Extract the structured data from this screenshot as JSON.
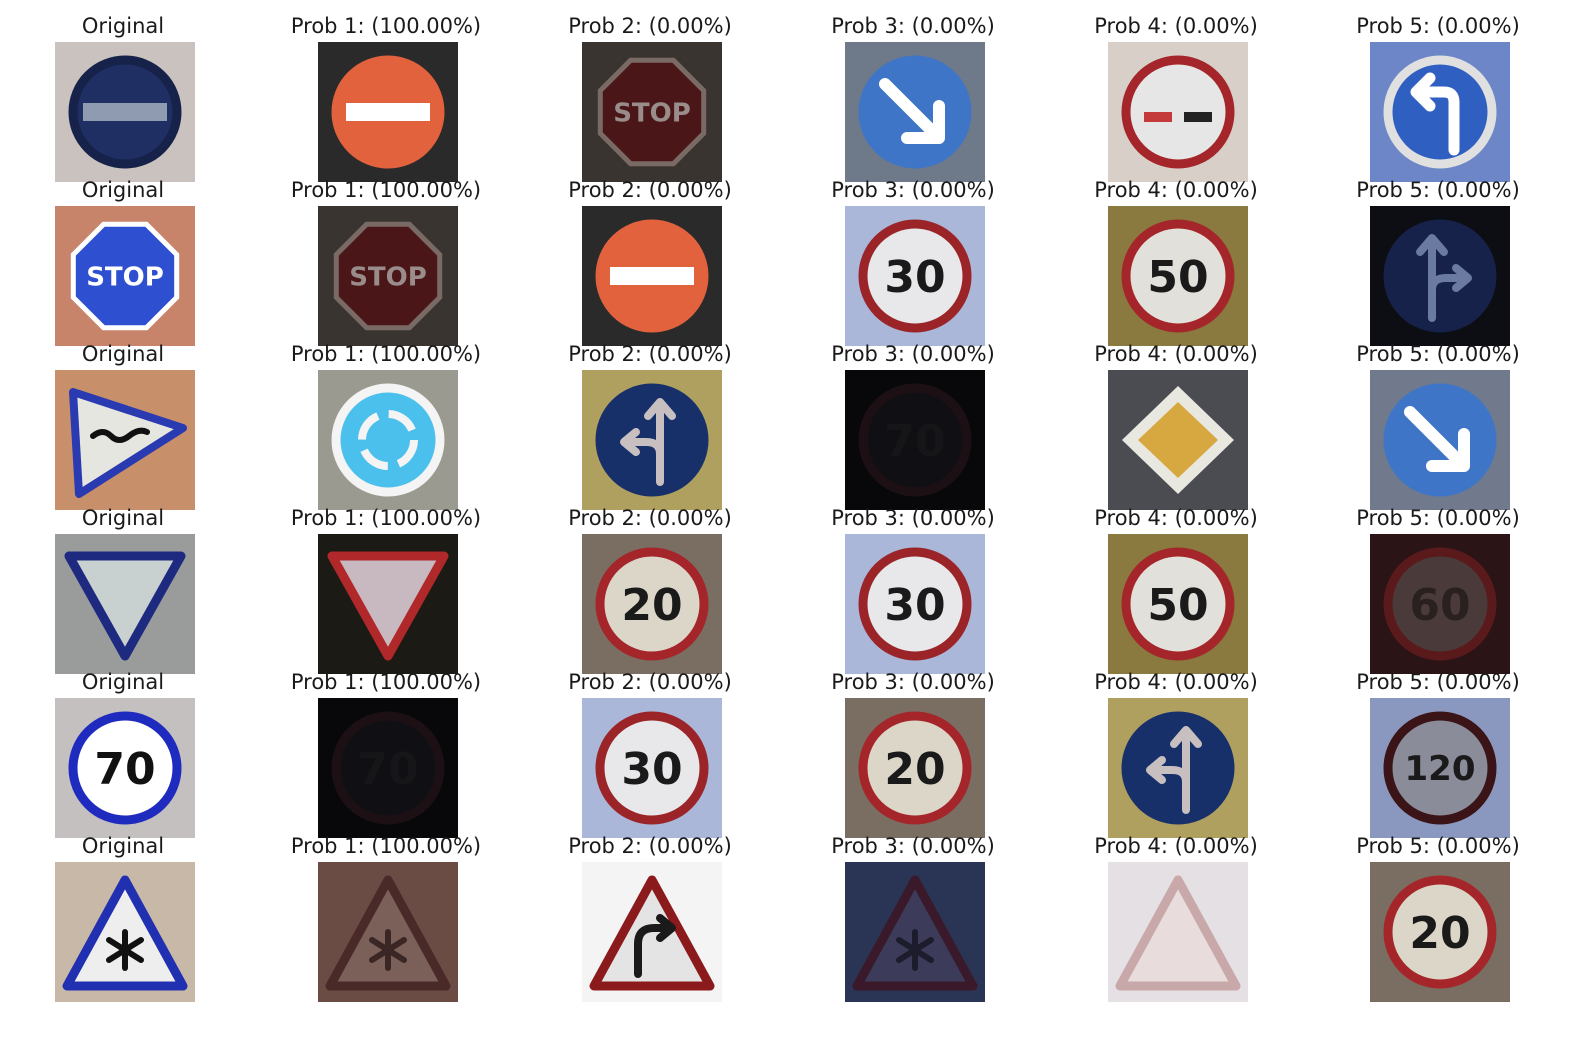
{
  "colors": {
    "blue": "#2f5fb3",
    "navy": "#14234f",
    "red": "#b0282a",
    "orange": "#e2623e",
    "lightblue": "#4cc0ec",
    "yellow": "#d4a33a",
    "darkred": "#2c1214",
    "text": "#1a1a1a"
  },
  "rows": [
    {
      "cells": [
        {
          "title": "Original",
          "icon": "no-entry-blue-icon",
          "bg": "#c9c2be",
          "shape": "circle",
          "fill": "#1f2f64",
          "ring": "#16224a",
          "glyph": "bar",
          "glyph_color": "#8f9bb0",
          "label": ""
        },
        {
          "title": "Prob 1: (100.00%)",
          "icon": "no-entry-icon",
          "bg": "#2a2a2a",
          "shape": "circle",
          "fill": "#e2623e",
          "ring": "#e2623e",
          "glyph": "bar",
          "glyph_color": "#ffffff",
          "label": ""
        },
        {
          "title": "Prob 2: (0.00%)",
          "icon": "stop-sign-icon",
          "bg": "#3a3430",
          "shape": "octagon",
          "fill": "#4a1618",
          "ring": "#7a6a66",
          "glyph": "text",
          "glyph_color": "#9a8c8a",
          "label": "STOP"
        },
        {
          "title": "Prob 3: (0.00%)",
          "icon": "arrow-down-right-icon",
          "bg": "#6e7a8a",
          "shape": "circle",
          "fill": "#3f75c6",
          "ring": "#3f75c6",
          "glyph": "arrow-dr",
          "glyph_color": "#ffffff",
          "label": ""
        },
        {
          "title": "Prob 4: (0.00%)",
          "icon": "no-passing-icon",
          "bg": "#d8d0c8",
          "shape": "circle",
          "fill": "#e6e6e6",
          "ring": "#a4262a",
          "glyph": "cars",
          "glyph_color": "#b0282a",
          "label": ""
        },
        {
          "title": "Prob 5: (0.00%)",
          "icon": "turn-left-icon",
          "bg": "#6d86c8",
          "shape": "circle",
          "fill": "#2f5fc0",
          "ring": "#e0e0e0",
          "glyph": "arrow-l",
          "glyph_color": "#ffffff",
          "label": ""
        }
      ]
    },
    {
      "cells": [
        {
          "title": "Original",
          "icon": "stop-sign-blue-icon",
          "bg": "#c8846a",
          "shape": "octagon",
          "fill": "#2d4fd0",
          "ring": "#ffffff",
          "glyph": "text",
          "glyph_color": "#ffffff",
          "label": "STOP"
        },
        {
          "title": "Prob 1: (100.00%)",
          "icon": "stop-sign-icon",
          "bg": "#3a3430",
          "shape": "octagon",
          "fill": "#4a1618",
          "ring": "#7a6a66",
          "glyph": "text",
          "glyph_color": "#9a8c8a",
          "label": "STOP"
        },
        {
          "title": "Prob 2: (0.00%)",
          "icon": "no-entry-icon",
          "bg": "#2a2a2a",
          "shape": "circle",
          "fill": "#e2623e",
          "ring": "#e2623e",
          "glyph": "bar",
          "glyph_color": "#ffffff",
          "label": ""
        },
        {
          "title": "Prob 3: (0.00%)",
          "icon": "speed-limit-30-icon",
          "bg": "#aab7d8",
          "shape": "circle",
          "fill": "#e8e8ea",
          "ring": "#9a2428",
          "glyph": "text",
          "glyph_color": "#1a1a1a",
          "label": "30"
        },
        {
          "title": "Prob 4: (0.00%)",
          "icon": "speed-limit-50-icon",
          "bg": "#8a7a40",
          "shape": "circle",
          "fill": "#e2e0da",
          "ring": "#a4262a",
          "glyph": "text",
          "glyph_color": "#1a1a1a",
          "label": "50"
        },
        {
          "title": "Prob 5: (0.00%)",
          "icon": "straight-or-right-icon",
          "bg": "#0c0e14",
          "shape": "circle",
          "fill": "#16224a",
          "ring": "#16224a",
          "glyph": "arrow-sr",
          "glyph_color": "#6a7aa0",
          "label": ""
        }
      ]
    },
    {
      "cells": [
        {
          "title": "Original",
          "icon": "yield-pointing-right-icon",
          "bg": "#c8906a",
          "shape": "triangle-right",
          "fill": "#e6e6e0",
          "ring": "#2a3ab0",
          "glyph": "squiggle",
          "glyph_color": "#111111",
          "label": ""
        },
        {
          "title": "Prob 1: (100.00%)",
          "icon": "roundabout-icon",
          "bg": "#9a9a90",
          "shape": "circle",
          "fill": "#4cc0ec",
          "ring": "#f4f4f4",
          "glyph": "roundabout",
          "glyph_color": "#f4f4f4",
          "label": ""
        },
        {
          "title": "Prob 2: (0.00%)",
          "icon": "straight-or-left-icon",
          "bg": "#b0a060",
          "shape": "circle",
          "fill": "#18306a",
          "ring": "#18306a",
          "glyph": "arrow-sl",
          "glyph_color": "#c8c0c0",
          "label": ""
        },
        {
          "title": "Prob 3: (0.00%)",
          "icon": "speed-limit-70-dark-icon",
          "bg": "#08080a",
          "shape": "circle",
          "fill": "#101014",
          "ring": "#1c1014",
          "glyph": "text",
          "glyph_color": "#161618",
          "label": "70"
        },
        {
          "title": "Prob 4: (0.00%)",
          "icon": "priority-road-icon",
          "bg": "#4a4c52",
          "shape": "diamond",
          "fill": "#d8a840",
          "ring": "#e8e8e0",
          "glyph": "none",
          "glyph_color": "#ffffff",
          "label": ""
        },
        {
          "title": "Prob 5: (0.00%)",
          "icon": "arrow-down-right-icon",
          "bg": "#707a8c",
          "shape": "circle",
          "fill": "#3f75c6",
          "ring": "#3f75c6",
          "glyph": "arrow-dr",
          "glyph_color": "#ffffff",
          "label": ""
        }
      ]
    },
    {
      "cells": [
        {
          "title": "Original",
          "icon": "yield-blue-icon",
          "bg": "#9a9c9c",
          "shape": "triangle-down",
          "fill": "#c8d0d0",
          "ring": "#1e2a80",
          "glyph": "none",
          "glyph_color": "#ffffff",
          "label": ""
        },
        {
          "title": "Prob 1: (100.00%)",
          "icon": "yield-icon",
          "bg": "#1c1a14",
          "shape": "triangle-down",
          "fill": "#c8b8c0",
          "ring": "#b0282a",
          "glyph": "none",
          "glyph_color": "#ffffff",
          "label": ""
        },
        {
          "title": "Prob 2: (0.00%)",
          "icon": "speed-limit-20-icon",
          "bg": "#7a6e62",
          "shape": "circle",
          "fill": "#dcd6c8",
          "ring": "#a4262a",
          "glyph": "text",
          "glyph_color": "#1a1a1a",
          "label": "20"
        },
        {
          "title": "Prob 3: (0.00%)",
          "icon": "speed-limit-30-icon",
          "bg": "#aab7d8",
          "shape": "circle",
          "fill": "#e8e8ea",
          "ring": "#9a2428",
          "glyph": "text",
          "glyph_color": "#1a1a1a",
          "label": "30"
        },
        {
          "title": "Prob 4: (0.00%)",
          "icon": "speed-limit-50-icon",
          "bg": "#8a7a40",
          "shape": "circle",
          "fill": "#e2e0da",
          "ring": "#a4262a",
          "glyph": "text",
          "glyph_color": "#1a1a1a",
          "label": "50"
        },
        {
          "title": "Prob 5: (0.00%)",
          "icon": "speed-limit-60-dark-icon",
          "bg": "#2a1416",
          "shape": "circle",
          "fill": "#4a3a3a",
          "ring": "#5a1a1c",
          "glyph": "text",
          "glyph_color": "#2a2020",
          "label": "60"
        }
      ]
    },
    {
      "cells": [
        {
          "title": "Original",
          "icon": "speed-limit-70-blue-icon",
          "bg": "#c4c0c0",
          "shape": "circle",
          "fill": "#ffffff",
          "ring": "#1f2bbf",
          "glyph": "text",
          "glyph_color": "#111111",
          "label": "70"
        },
        {
          "title": "Prob 1: (100.00%)",
          "icon": "speed-limit-70-dark-icon",
          "bg": "#08080a",
          "shape": "circle",
          "fill": "#101014",
          "ring": "#1c1014",
          "glyph": "text",
          "glyph_color": "#161618",
          "label": "70"
        },
        {
          "title": "Prob 2: (0.00%)",
          "icon": "speed-limit-30-icon",
          "bg": "#aab7d8",
          "shape": "circle",
          "fill": "#e8e8ea",
          "ring": "#9a2428",
          "glyph": "text",
          "glyph_color": "#1a1a1a",
          "label": "30"
        },
        {
          "title": "Prob 3: (0.00%)",
          "icon": "speed-limit-20-icon",
          "bg": "#7a6e62",
          "shape": "circle",
          "fill": "#dcd6c8",
          "ring": "#a4262a",
          "glyph": "text",
          "glyph_color": "#1a1a1a",
          "label": "20"
        },
        {
          "title": "Prob 4: (0.00%)",
          "icon": "straight-or-left-icon",
          "bg": "#b0a060",
          "shape": "circle",
          "fill": "#18306a",
          "ring": "#18306a",
          "glyph": "arrow-sl",
          "glyph_color": "#c8c0c0",
          "label": ""
        },
        {
          "title": "Prob 5: (0.00%)",
          "icon": "speed-limit-120-icon",
          "bg": "#8a98c0",
          "shape": "circle",
          "fill": "#8a8c9a",
          "ring": "#3a1416",
          "glyph": "text",
          "glyph_color": "#1a1a1a",
          "label": "120"
        }
      ]
    },
    {
      "cells": [
        {
          "title": "Original",
          "icon": "snow-warning-blue-icon",
          "bg": "#c8b8a8",
          "shape": "triangle-up",
          "fill": "#eeeeee",
          "ring": "#2030b0",
          "glyph": "snow",
          "glyph_color": "#111111",
          "label": ""
        },
        {
          "title": "Prob 1: (100.00%)",
          "icon": "snow-warning-icon",
          "bg": "#6a4c44",
          "shape": "triangle-up",
          "fill": "#7a6058",
          "ring": "#4a2a28",
          "glyph": "snow",
          "glyph_color": "#3a2624",
          "label": ""
        },
        {
          "title": "Prob 2: (0.00%)",
          "icon": "curve-right-icon",
          "bg": "#f4f4f4",
          "shape": "triangle-up",
          "fill": "#e4e4e4",
          "ring": "#8a1a1c",
          "glyph": "curve",
          "glyph_color": "#1a1a1a",
          "label": ""
        },
        {
          "title": "Prob 3: (0.00%)",
          "icon": "snow-warning-dark-icon",
          "bg": "#2a3454",
          "shape": "triangle-up",
          "fill": "#3c3c5a",
          "ring": "#3a1a2a",
          "glyph": "snow",
          "glyph_color": "#1c1c2c",
          "label": ""
        },
        {
          "title": "Prob 4: (0.00%)",
          "icon": "warning-blurry-icon",
          "bg": "#e4e0e4",
          "shape": "triangle-up",
          "fill": "#e8dcdc",
          "ring": "#c8a8a8",
          "glyph": "none",
          "glyph_color": "#ffffff",
          "label": ""
        },
        {
          "title": "Prob 5: (0.00%)",
          "icon": "speed-limit-20-icon",
          "bg": "#7a6e62",
          "shape": "circle",
          "fill": "#dcd6c8",
          "ring": "#a4262a",
          "glyph": "text",
          "glyph_color": "#1a1a1a",
          "label": "20"
        }
      ]
    }
  ]
}
